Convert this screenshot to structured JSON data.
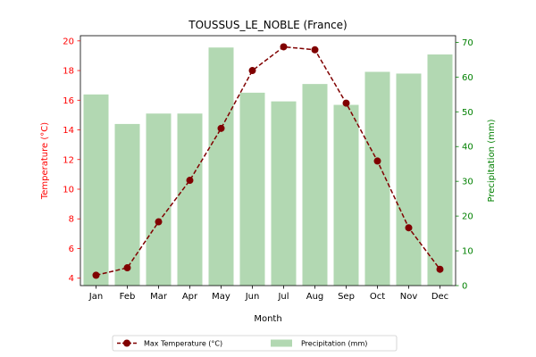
{
  "chart_data": {
    "type": "bar+line",
    "title": "TOUSSUS_LE_NOBLE (France)",
    "xlabel": "Month",
    "categories": [
      "Jan",
      "Feb",
      "Mar",
      "Apr",
      "May",
      "Jun",
      "Jul",
      "Aug",
      "Sep",
      "Oct",
      "Nov",
      "Dec"
    ],
    "series": [
      {
        "name": "Max Temperature (°C)",
        "kind": "line",
        "axis": "left",
        "color": "#800000",
        "values": [
          4.2,
          4.7,
          7.8,
          10.6,
          14.1,
          18.0,
          19.6,
          19.4,
          15.8,
          11.9,
          7.4,
          4.6
        ]
      },
      {
        "name": "Precipitation (mm)",
        "kind": "bar",
        "axis": "right",
        "color": "#b2d8b2",
        "values": [
          55.0,
          46.5,
          49.5,
          49.5,
          68.5,
          55.5,
          53.0,
          58.0,
          52.0,
          61.5,
          61.0,
          66.5
        ]
      }
    ],
    "y_left": {
      "label": "Temperature (°C)",
      "color": "#ff0000",
      "ylim": [
        3.5,
        20.35
      ],
      "ticks": [
        4,
        6,
        8,
        10,
        12,
        14,
        16,
        18,
        20
      ]
    },
    "y_right": {
      "label": "Precipitation (mm)",
      "color": "#008000",
      "ylim": [
        0,
        71.9
      ],
      "ticks": [
        0,
        10,
        20,
        30,
        40,
        50,
        60,
        70
      ]
    },
    "legend": {
      "position": "bottom-center",
      "items": [
        "Max Temperature (°C)",
        "Precipitation (mm)"
      ]
    },
    "grid": false
  }
}
